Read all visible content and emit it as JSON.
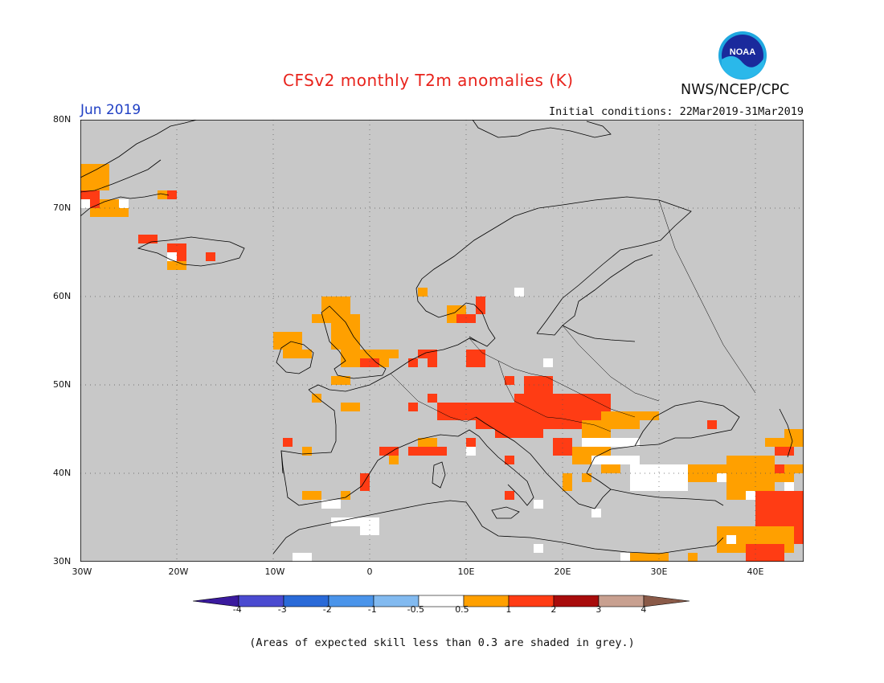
{
  "title": "CFSv2 monthly T2m anomalies (K)",
  "month": "Jun 2019",
  "initial_conditions": "Initial conditions: 22Mar2019-31Mar2019",
  "agency": "NWS/NCEP/CPC",
  "logo_text": "NOAA",
  "footnote": "(Areas of expected skill less than 0.3 are shaded in grey.)",
  "map": {
    "lon_range": [
      -30,
      45
    ],
    "lat_range": [
      30,
      80
    ],
    "background_color": "#c8c8c8",
    "grid": true,
    "lat_labels": [
      "80N",
      "70N",
      "60N",
      "50N",
      "40N",
      "30N"
    ],
    "lon_labels": [
      "30W",
      "20W",
      "10W",
      "0",
      "10E",
      "20E",
      "30E",
      "40E"
    ]
  },
  "colorbar": {
    "tick_labels": [
      "-4",
      "-3",
      "-2",
      "-1",
      "-0.5",
      "0.5",
      "1",
      "2",
      "3",
      "4"
    ],
    "colors": [
      "#3a1a9e",
      "#4a4ad0",
      "#2a6ad8",
      "#4a94ea",
      "#82baf0",
      "#ffffff",
      "#ffa000",
      "#ff3c14",
      "#a80c0c",
      "#c8a090",
      "#8a5a48"
    ]
  },
  "legend_classes": {
    "neutral": "#ffffff",
    "warm1": "#ffa000",
    "warm2": "#ff3c14"
  }
}
